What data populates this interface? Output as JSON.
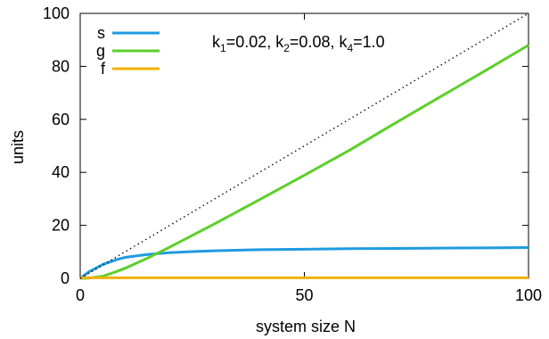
{
  "chart_data": {
    "type": "line",
    "xlabel": "system size N",
    "ylabel": "units",
    "xlim": [
      0,
      100
    ],
    "ylim": [
      0,
      100
    ],
    "xticks": [
      0,
      50,
      100
    ],
    "yticks": [
      0,
      20,
      40,
      60,
      80,
      100
    ],
    "legend_position": "top-left",
    "grid": false,
    "annotation": {
      "parts": [
        {
          "text": "k",
          "sub": "1",
          "tail": "=0.02, "
        },
        {
          "text": "k",
          "sub": "2",
          "tail": "=0.08, "
        },
        {
          "text": "k",
          "sub": "4",
          "tail": "=1.0"
        }
      ]
    },
    "series": [
      {
        "name": "s",
        "color": "#1f9be0",
        "style": "solid",
        "x": [
          0,
          2,
          5,
          8,
          10,
          15,
          20,
          25,
          30,
          40,
          50,
          60,
          70,
          80,
          90,
          100
        ],
        "y": [
          0,
          2.5,
          5.2,
          7.0,
          7.9,
          9.0,
          9.7,
          10.1,
          10.4,
          10.8,
          11.0,
          11.2,
          11.3,
          11.4,
          11.5,
          11.6
        ]
      },
      {
        "name": "g",
        "color": "#5ccf2a",
        "style": "solid",
        "x": [
          0,
          2,
          5,
          8,
          10,
          15,
          20,
          30,
          40,
          50,
          60,
          70,
          80,
          90,
          100
        ],
        "y": [
          0,
          0.1,
          0.8,
          2.5,
          3.8,
          7.6,
          11.8,
          20.6,
          29.7,
          38.9,
          48.3,
          58.3,
          68.2,
          78.0,
          88.0
        ]
      },
      {
        "name": "f",
        "color": "#f0b000",
        "style": "solid",
        "x": [
          0,
          100
        ],
        "y": [
          0.2,
          0.2
        ]
      },
      {
        "color": "#000000",
        "style": "dotted",
        "x": [
          0,
          100
        ],
        "y": [
          0,
          100
        ]
      }
    ]
  }
}
